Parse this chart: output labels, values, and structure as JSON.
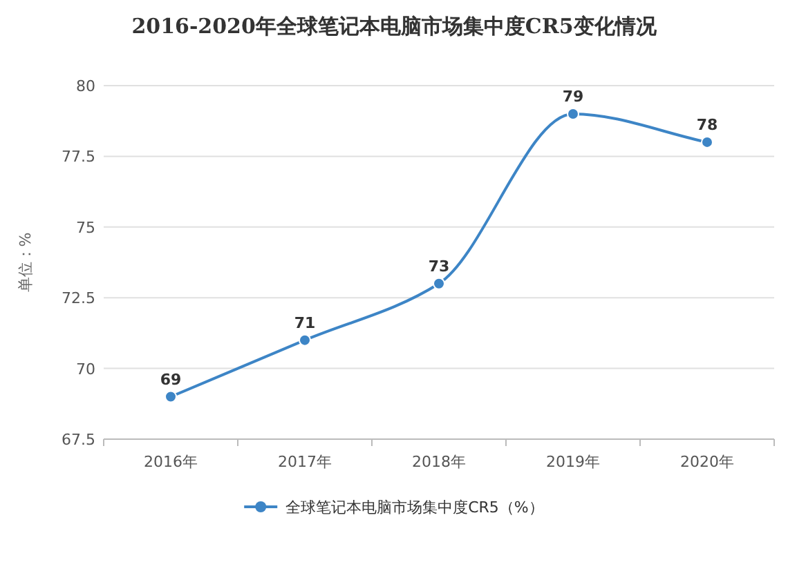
{
  "chart_data": {
    "type": "line",
    "title": "2016-2020年全球笔记本电脑市场集中度CR5变化情况",
    "ylabel": "单位：%",
    "categories": [
      "2016年",
      "2017年",
      "2018年",
      "2019年",
      "2020年"
    ],
    "series": [
      {
        "name": "全球笔记本电脑市场集中度CR5（%）",
        "color": "#3d85c6",
        "values": [
          69,
          71,
          73,
          79,
          78
        ]
      }
    ],
    "ylim": [
      67.5,
      80
    ],
    "yticks": [
      67.5,
      70,
      72.5,
      75,
      77.5,
      80
    ],
    "grid": "y",
    "legend": "bottom",
    "marker": "circle",
    "data_labels": true
  }
}
